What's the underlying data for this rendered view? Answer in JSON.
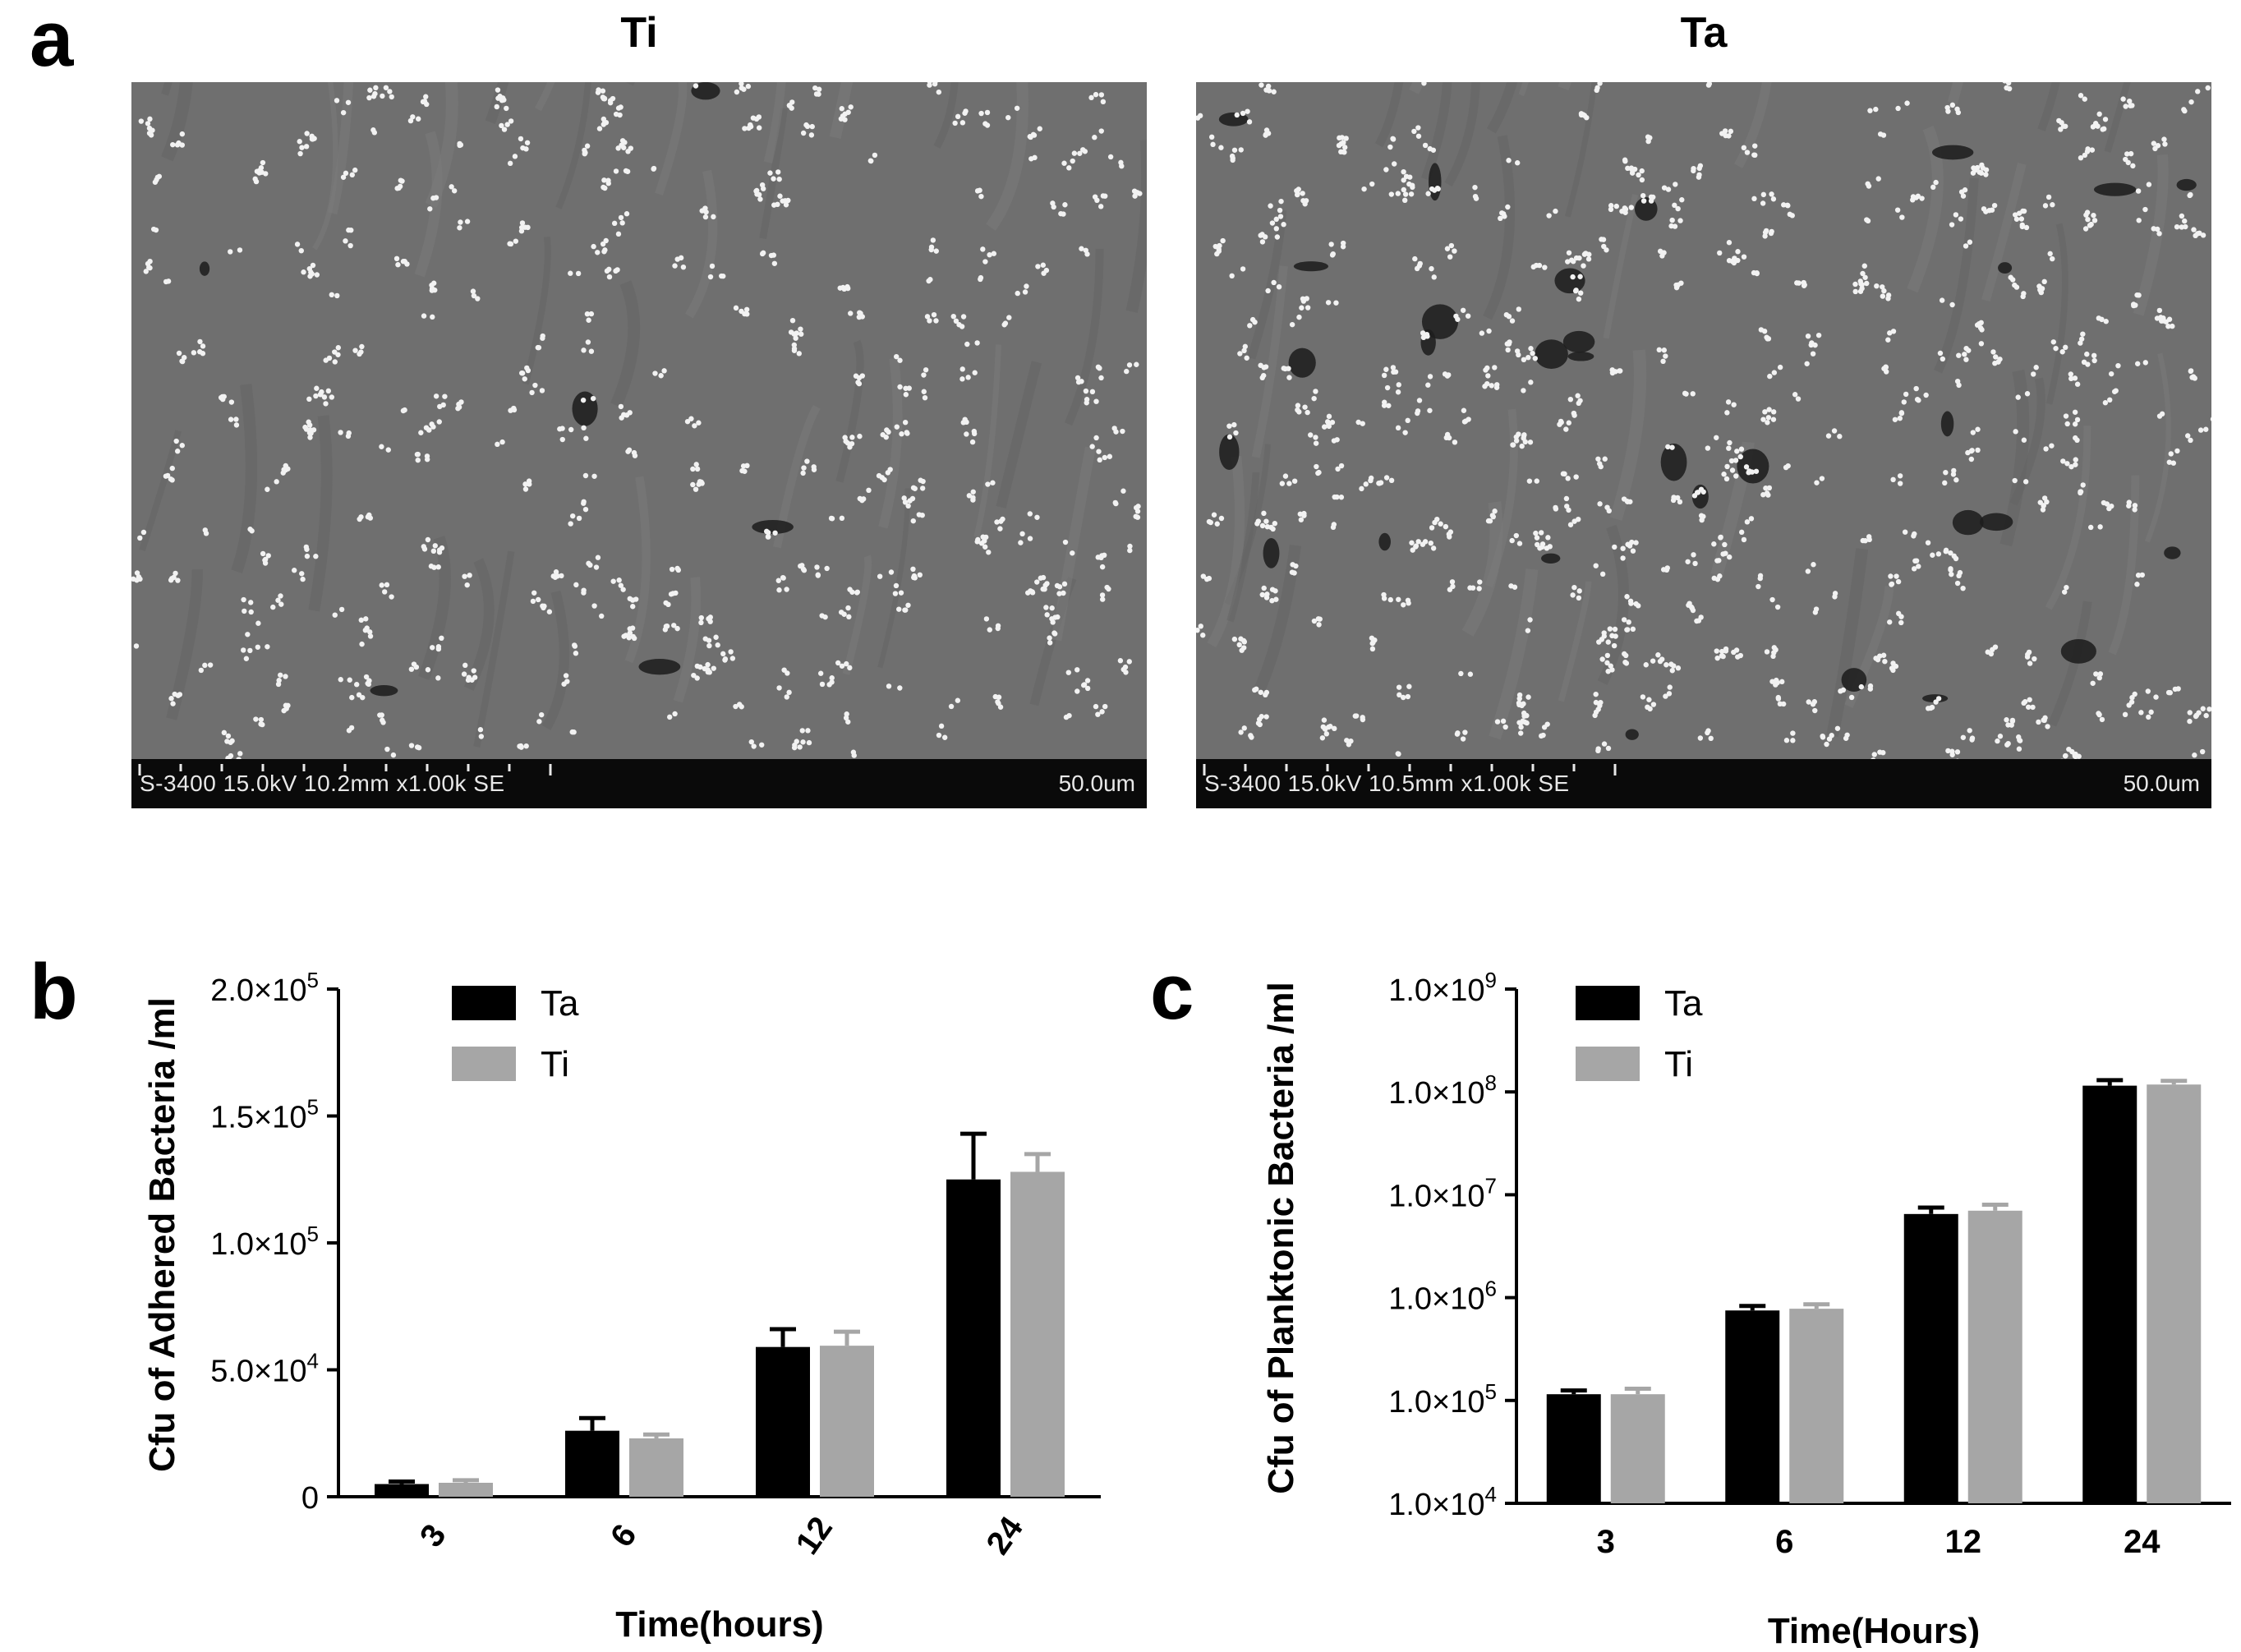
{
  "panel_a": {
    "letter": "a",
    "images": [
      {
        "title": "Ti",
        "info": "S-3400 15.0kV 10.2mm x1.00k SE",
        "scale": "50.0um"
      },
      {
        "title": "Ta",
        "info": "S-3400 15.0kV 10.5mm x1.00k SE",
        "scale": "50.0um"
      }
    ]
  },
  "colors": {
    "Ta": "#000000",
    "Ti": "#a6a6a6"
  },
  "chart_data": [
    {
      "panel": "b",
      "type": "bar",
      "categories": [
        "3",
        "6",
        "12",
        "24"
      ],
      "xlabel": "Time(hours)",
      "ylabel": "Cfu of Adhered Bacteria /ml",
      "ylim": [
        0,
        200000
      ],
      "yticks": [
        {
          "value": 0,
          "label": "0",
          "mant": "",
          "exp": ""
        },
        {
          "value": 50000,
          "label": "",
          "mant": "5.0×10",
          "exp": "4"
        },
        {
          "value": 100000,
          "label": "",
          "mant": "1.0×10",
          "exp": "5"
        },
        {
          "value": 150000,
          "label": "",
          "mant": "1.5×10",
          "exp": "5"
        },
        {
          "value": 200000,
          "label": "",
          "mant": "2.0×10",
          "exp": "5"
        }
      ],
      "series": [
        {
          "name": "Ta",
          "values": [
            5000,
            26000,
            59000,
            125000
          ],
          "errors": [
            1000,
            5000,
            7000,
            18000
          ]
        },
        {
          "name": "Ti",
          "values": [
            5500,
            23000,
            59500,
            128000
          ],
          "errors": [
            1000,
            1500,
            5500,
            7000
          ]
        }
      ],
      "legend": "top-left",
      "grid": false
    },
    {
      "panel": "c",
      "type": "bar",
      "yscale": "log",
      "categories": [
        "3",
        "6",
        "12",
        "24"
      ],
      "xlabel": "Time(Hours)",
      "ylabel": "Cfu of Planktonic  Bacteria /ml",
      "ylim": [
        10000,
        1000000000
      ],
      "yticks": [
        {
          "value": 10000,
          "mant": "1.0×10",
          "exp": "4"
        },
        {
          "value": 100000,
          "mant": "1.0×10",
          "exp": "5"
        },
        {
          "value": 1000000,
          "mant": "1.0×10",
          "exp": "6"
        },
        {
          "value": 10000000,
          "mant": "1.0×10",
          "exp": "7"
        },
        {
          "value": 100000000,
          "mant": "1.0×10",
          "exp": "8"
        },
        {
          "value": 1000000000,
          "mant": "1.0×10",
          "exp": "9"
        }
      ],
      "series": [
        {
          "name": "Ta",
          "values": [
            115000,
            750000,
            6500000,
            115000000
          ],
          "errors": [
            10000,
            80000,
            1000000,
            15000000
          ]
        },
        {
          "name": "Ti",
          "values": [
            115000,
            780000,
            7000000,
            118000000
          ],
          "errors": [
            15000,
            80000,
            1000000,
            10000000
          ]
        }
      ],
      "legend": "top-left",
      "grid": false
    }
  ]
}
